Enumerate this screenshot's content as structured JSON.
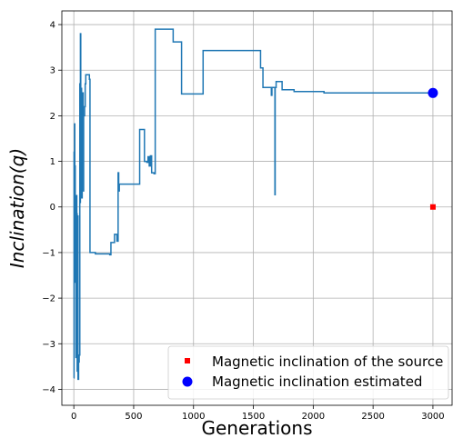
{
  "chart_data": {
    "type": "line",
    "xlabel": "Generations",
    "ylabel": "Inclination(q)",
    "xlim": [
      -100,
      3160
    ],
    "ylim": [
      -4.35,
      4.3
    ],
    "xticks": [
      0,
      500,
      1000,
      1500,
      2000,
      2500,
      3000
    ],
    "yticks": [
      -4,
      -3,
      -2,
      -1,
      0,
      1,
      2,
      3,
      4
    ],
    "grid": true,
    "legend_position": "lower-right",
    "colors": {
      "trace": "#1f77b4",
      "source_marker": "#ff0000",
      "estimate_marker": "#0000ff",
      "grid": "#b0b0b0"
    },
    "series": [
      {
        "style": "step",
        "points": [
          [
            0,
            -3.75
          ],
          [
            2,
            1.2
          ],
          [
            4,
            -1.1
          ],
          [
            6,
            1.82
          ],
          [
            8,
            -1.65
          ],
          [
            10,
            0.9
          ],
          [
            12,
            -1.55
          ],
          [
            15,
            -0.1
          ],
          [
            18,
            -3.3
          ],
          [
            22,
            0.25
          ],
          [
            25,
            -0.15
          ],
          [
            28,
            -3.6
          ],
          [
            32,
            -0.2
          ],
          [
            35,
            -3.78
          ],
          [
            40,
            -3.4
          ],
          [
            45,
            -3.25
          ],
          [
            50,
            2.7
          ],
          [
            52,
            0.1
          ],
          [
            55,
            3.8
          ],
          [
            58,
            0.3
          ],
          [
            62,
            2.6
          ],
          [
            65,
            0.2
          ],
          [
            70,
            2.05
          ],
          [
            75,
            2.5
          ],
          [
            78,
            0.35
          ],
          [
            82,
            2.0
          ],
          [
            90,
            2.2
          ],
          [
            95,
            2.7
          ],
          [
            100,
            2.9
          ],
          [
            130,
            2.8
          ],
          [
            135,
            -1.0
          ],
          [
            180,
            -1.03
          ],
          [
            300,
            -1.05
          ],
          [
            310,
            -0.78
          ],
          [
            340,
            -0.6
          ],
          [
            360,
            -0.75
          ],
          [
            370,
            0.75
          ],
          [
            375,
            0.35
          ],
          [
            380,
            0.5
          ],
          [
            550,
            1.7
          ],
          [
            590,
            1.0
          ],
          [
            610,
            0.98
          ],
          [
            620,
            1.1
          ],
          [
            630,
            0.9
          ],
          [
            640,
            1.12
          ],
          [
            650,
            0.75
          ],
          [
            670,
            0.73
          ],
          [
            680,
            3.9
          ],
          [
            830,
            3.62
          ],
          [
            900,
            2.48
          ],
          [
            1080,
            3.43
          ],
          [
            1560,
            3.05
          ],
          [
            1580,
            2.62
          ],
          [
            1650,
            2.45
          ],
          [
            1655,
            2.62
          ],
          [
            1680,
            0.27
          ],
          [
            1682,
            2.62
          ],
          [
            1690,
            2.75
          ],
          [
            1740,
            2.57
          ],
          [
            1840,
            2.53
          ],
          [
            2090,
            2.5
          ],
          [
            3000,
            2.5
          ]
        ]
      },
      {
        "name": "Magnetic inclination of the source",
        "style": "marker-square",
        "points": [
          [
            3000,
            0.0
          ]
        ]
      },
      {
        "name": "Magnetic inclination estimated",
        "style": "marker-circle",
        "points": [
          [
            3000,
            2.5
          ]
        ]
      }
    ]
  }
}
